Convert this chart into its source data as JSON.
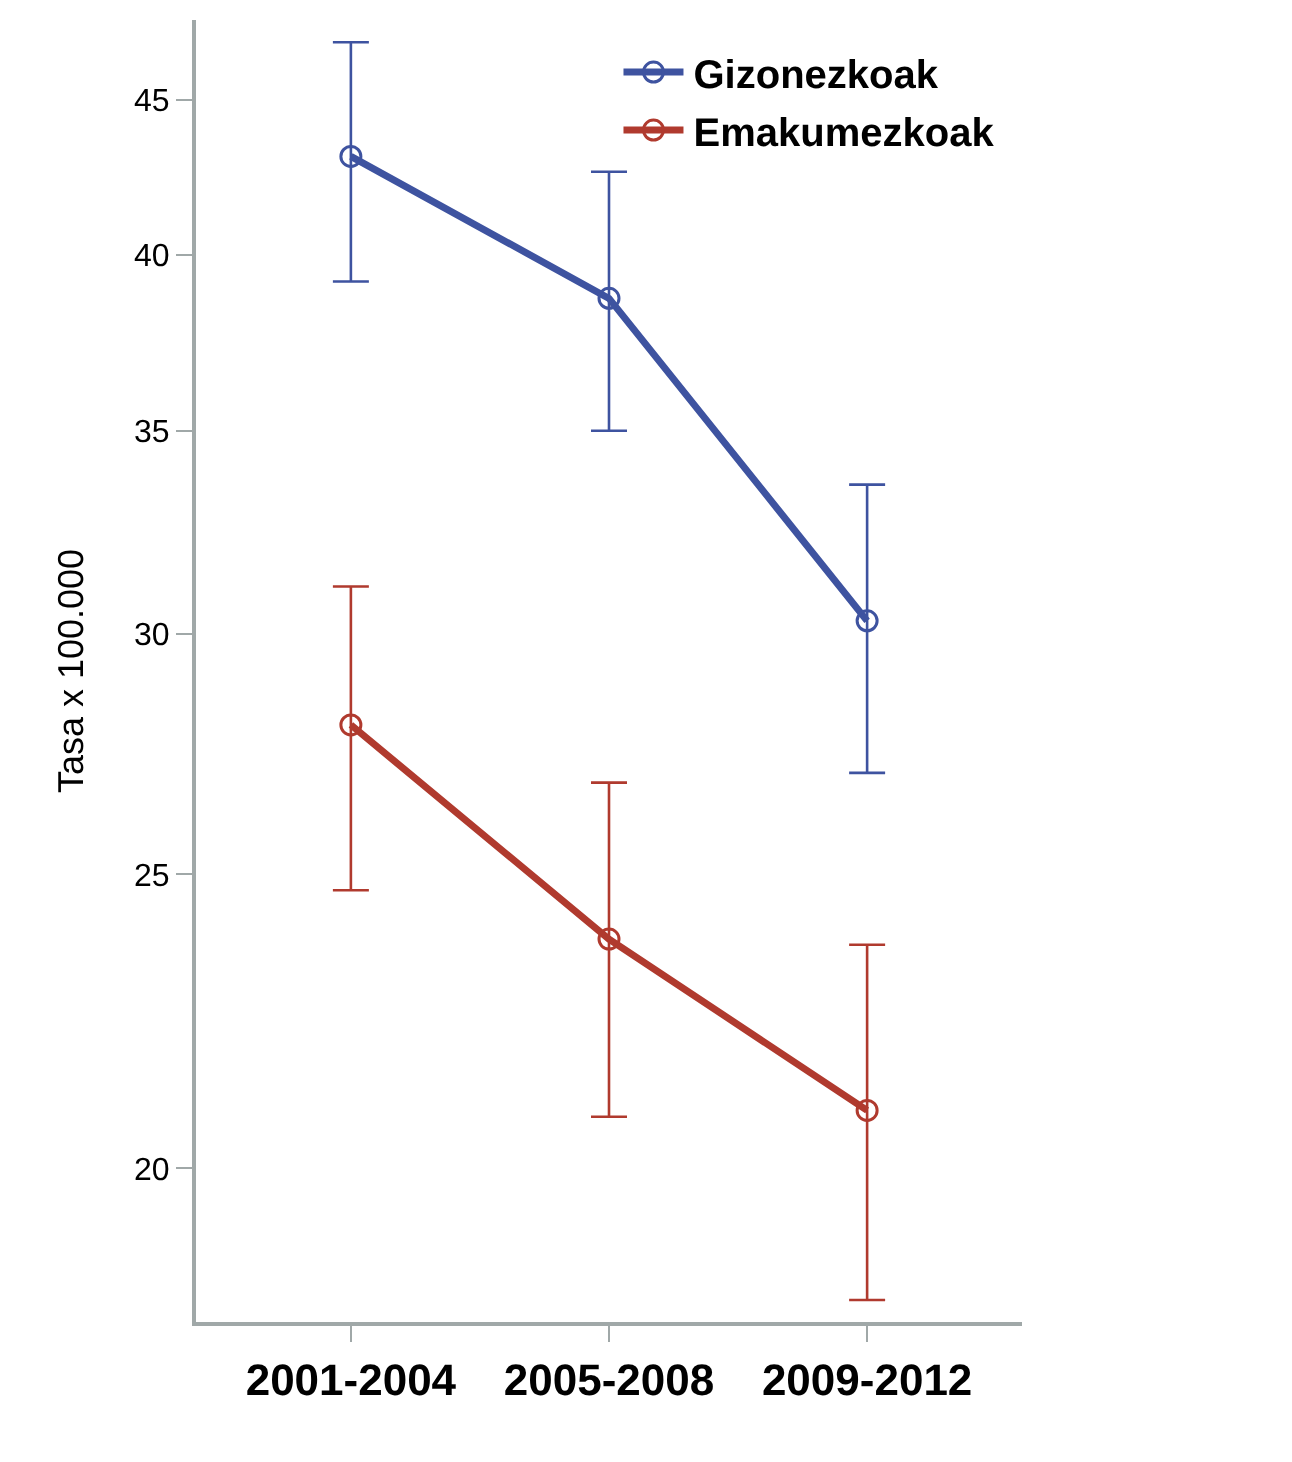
{
  "chart_data": {
    "type": "line",
    "ylabel": "Tasa x 100.000",
    "categories": [
      "2001-2004",
      "2005-2008",
      "2009-2012"
    ],
    "series": [
      {
        "name": "Gizonezkoak",
        "color": "#3e53a0",
        "values": [
          43.1,
          38.7,
          30.3
        ],
        "errors": [
          [
            39.2,
            47.0
          ],
          [
            35.0,
            42.6
          ],
          [
            27.0,
            33.6
          ]
        ]
      },
      {
        "name": "Emakumezkoak",
        "color": "#b03a2e",
        "values": [
          28.0,
          23.8,
          20.9
        ],
        "errors": [
          [
            24.7,
            31.1
          ],
          [
            20.8,
            26.8
          ],
          [
            18.1,
            23.7
          ]
        ]
      }
    ],
    "log": "y",
    "ylim": [
      17.8,
      47.8
    ],
    "yticks": [
      20,
      25,
      30,
      35,
      40,
      45
    ],
    "legend": "top right",
    "marker": "circle",
    "line_style": "solid"
  }
}
